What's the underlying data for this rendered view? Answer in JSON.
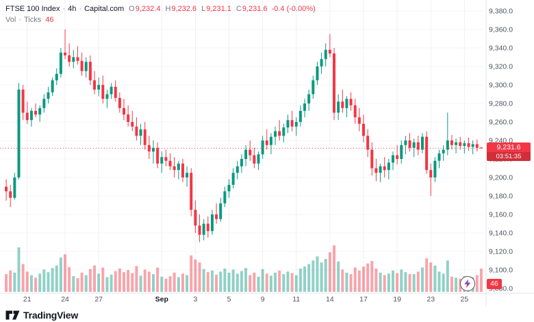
{
  "header": {
    "legend": {
      "title": "FTSE 100 Index",
      "sep": "·",
      "interval": "4h",
      "exchange": "Capital.com",
      "o_label": "O",
      "o": "9,232.4",
      "h_label": "H",
      "h": "9,232.6",
      "l_label": "L",
      "l": "9,231.1",
      "c_label": "C",
      "c": "9,231.6",
      "change": "-0.4 (-0.00%)"
    },
    "volume_legend": {
      "label": "Vol",
      "sep": "·",
      "type": "Ticks",
      "value": "46"
    }
  },
  "price_badge": {
    "price": "9,231.6",
    "countdown": "03:51:35"
  },
  "volume_badge": {
    "value": "46"
  },
  "footer": {
    "logo_text": "TradingView"
  },
  "trade_button": {
    "icon": "lightning-bolt-icon"
  },
  "chart_data": {
    "type": "candlestick",
    "title": "FTSE 100 Index · 4h · Capital.com",
    "last_price": 9231.6,
    "price_axis": {
      "min": 9080,
      "max": 9380,
      "step": 20,
      "labels": [
        "9,380.0",
        "9,360.0",
        "9,340.0",
        "9,320.0",
        "9,300.0",
        "9,280.0",
        "9,260.0",
        "9,240.0",
        "9,220.0",
        "9,200.0",
        "9,180.0",
        "9,160.0",
        "9,140.0",
        "9,120.0",
        "9,100.0",
        "9,080.0"
      ]
    },
    "x_ticks": [
      {
        "label": "21",
        "index": 5,
        "major": false
      },
      {
        "label": "24",
        "index": 14,
        "major": false
      },
      {
        "label": "27",
        "index": 22,
        "major": false
      },
      {
        "label": "Sep",
        "index": 37,
        "major": true
      },
      {
        "label": "3",
        "index": 45,
        "major": false
      },
      {
        "label": "5",
        "index": 53,
        "major": false
      },
      {
        "label": "9",
        "index": 61,
        "major": false
      },
      {
        "label": "11",
        "index": 69,
        "major": false
      },
      {
        "label": "14",
        "index": 77,
        "major": false
      },
      {
        "label": "17",
        "index": 85,
        "major": false
      },
      {
        "label": "19",
        "index": 93,
        "major": false
      },
      {
        "label": "23",
        "index": 101,
        "major": false
      },
      {
        "label": "25",
        "index": 109,
        "major": false
      }
    ],
    "colors": {
      "up": "#089981",
      "down": "#f23645",
      "vol_up": "rgba(8,153,129,0.45)",
      "vol_down": "rgba(242,54,69,0.45)",
      "grid_v": "#eef0f4",
      "grid_h": "#f4f5f8",
      "axis_text": "#50535e",
      "axis_text_major": "#131722",
      "last_price_line": "#f23645",
      "separator": "#e0e3eb"
    },
    "candles": [
      [
        9190,
        9198,
        9175,
        9185,
        35
      ],
      [
        9185,
        9192,
        9168,
        9178,
        42
      ],
      [
        9178,
        9205,
        9176,
        9200,
        38
      ],
      [
        9200,
        9302,
        9198,
        9295,
        88
      ],
      [
        9295,
        9300,
        9262,
        9270,
        55
      ],
      [
        9270,
        9282,
        9258,
        9262,
        40
      ],
      [
        9262,
        9275,
        9255,
        9272,
        33
      ],
      [
        9272,
        9280,
        9265,
        9268,
        28
      ],
      [
        9268,
        9278,
        9260,
        9275,
        36
      ],
      [
        9275,
        9290,
        9270,
        9285,
        44
      ],
      [
        9285,
        9298,
        9280,
        9292,
        39
      ],
      [
        9292,
        9308,
        9288,
        9305,
        47
      ],
      [
        9305,
        9318,
        9300,
        9312,
        52
      ],
      [
        9312,
        9340,
        9308,
        9335,
        68
      ],
      [
        9335,
        9360,
        9328,
        9332,
        74
      ],
      [
        9332,
        9345,
        9320,
        9325,
        49
      ],
      [
        9325,
        9338,
        9318,
        9330,
        31
      ],
      [
        9330,
        9342,
        9322,
        9326,
        27
      ],
      [
        9326,
        9335,
        9310,
        9315,
        38
      ],
      [
        9315,
        9330,
        9308,
        9325,
        33
      ],
      [
        9325,
        9332,
        9300,
        9305,
        45
      ],
      [
        9305,
        9315,
        9290,
        9295,
        52
      ],
      [
        9295,
        9308,
        9288,
        9300,
        36
      ],
      [
        9300,
        9310,
        9280,
        9285,
        48
      ],
      [
        9285,
        9295,
        9275,
        9290,
        29
      ],
      [
        9290,
        9302,
        9285,
        9298,
        34
      ],
      [
        9298,
        9305,
        9282,
        9286,
        41
      ],
      [
        9286,
        9292,
        9270,
        9275,
        46
      ],
      [
        9275,
        9285,
        9262,
        9268,
        39
      ],
      [
        9268,
        9278,
        9255,
        9260,
        43
      ],
      [
        9260,
        9272,
        9250,
        9255,
        37
      ],
      [
        9255,
        9265,
        9240,
        9245,
        51
      ],
      [
        9245,
        9258,
        9235,
        9252,
        32
      ],
      [
        9252,
        9260,
        9230,
        9235,
        44
      ],
      [
        9235,
        9245,
        9220,
        9228,
        40
      ],
      [
        9228,
        9240,
        9215,
        9232,
        35
      ],
      [
        9232,
        9238,
        9210,
        9215,
        48
      ],
      [
        9215,
        9228,
        9205,
        9222,
        30
      ],
      [
        9222,
        9230,
        9212,
        9218,
        26
      ],
      [
        9218,
        9226,
        9208,
        9212,
        31
      ],
      [
        9212,
        9222,
        9200,
        9208,
        38
      ],
      [
        9208,
        9218,
        9198,
        9215,
        29
      ],
      [
        9215,
        9220,
        9195,
        9200,
        36
      ],
      [
        9200,
        9212,
        9190,
        9205,
        33
      ],
      [
        9205,
        9210,
        9158,
        9165,
        72
      ],
      [
        9165,
        9175,
        9140,
        9148,
        64
      ],
      [
        9148,
        9160,
        9130,
        9138,
        58
      ],
      [
        9138,
        9155,
        9132,
        9150,
        45
      ],
      [
        9150,
        9158,
        9135,
        9142,
        39
      ],
      [
        9142,
        9165,
        9138,
        9160,
        42
      ],
      [
        9160,
        9172,
        9150,
        9155,
        34
      ],
      [
        9155,
        9178,
        9152,
        9172,
        40
      ],
      [
        9172,
        9190,
        9168,
        9185,
        46
      ],
      [
        9185,
        9198,
        9178,
        9192,
        38
      ],
      [
        9192,
        9210,
        9188,
        9205,
        44
      ],
      [
        9205,
        9218,
        9198,
        9212,
        36
      ],
      [
        9212,
        9225,
        9205,
        9220,
        41
      ],
      [
        9220,
        9235,
        9212,
        9230,
        47
      ],
      [
        9230,
        9240,
        9218,
        9224,
        33
      ],
      [
        9224,
        9232,
        9210,
        9215,
        38
      ],
      [
        9215,
        9228,
        9208,
        9225,
        30
      ],
      [
        9225,
        9245,
        9220,
        9240,
        45
      ],
      [
        9240,
        9252,
        9230,
        9235,
        36
      ],
      [
        9235,
        9248,
        9225,
        9244,
        32
      ],
      [
        9244,
        9255,
        9235,
        9250,
        38
      ],
      [
        9250,
        9262,
        9240,
        9245,
        42
      ],
      [
        9245,
        9258,
        9238,
        9254,
        35
      ],
      [
        9254,
        9268,
        9248,
        9262,
        40
      ],
      [
        9262,
        9272,
        9250,
        9255,
        37
      ],
      [
        9255,
        9265,
        9245,
        9260,
        33
      ],
      [
        9260,
        9278,
        9255,
        9272,
        46
      ],
      [
        9272,
        9285,
        9265,
        9280,
        50
      ],
      [
        9280,
        9295,
        9272,
        9290,
        55
      ],
      [
        9290,
        9310,
        9285,
        9305,
        62
      ],
      [
        9305,
        9325,
        9300,
        9320,
        70
      ],
      [
        9320,
        9335,
        9312,
        9328,
        58
      ],
      [
        9328,
        9345,
        9320,
        9338,
        65
      ],
      [
        9338,
        9355,
        9330,
        9334,
        78
      ],
      [
        9334,
        9340,
        9262,
        9270,
        92
      ],
      [
        9270,
        9290,
        9262,
        9282,
        60
      ],
      [
        9282,
        9295,
        9270,
        9275,
        44
      ],
      [
        9275,
        9288,
        9265,
        9285,
        38
      ],
      [
        9285,
        9292,
        9272,
        9278,
        35
      ],
      [
        9278,
        9285,
        9258,
        9265,
        48
      ],
      [
        9265,
        9275,
        9250,
        9258,
        42
      ],
      [
        9258,
        9268,
        9238,
        9245,
        50
      ],
      [
        9245,
        9252,
        9222,
        9230,
        56
      ],
      [
        9230,
        9238,
        9202,
        9210,
        61
      ],
      [
        9210,
        9220,
        9196,
        9205,
        46
      ],
      [
        9205,
        9215,
        9195,
        9212,
        38
      ],
      [
        9212,
        9222,
        9200,
        9208,
        33
      ],
      [
        9208,
        9220,
        9198,
        9216,
        36
      ],
      [
        9216,
        9228,
        9208,
        9224,
        42
      ],
      [
        9224,
        9235,
        9214,
        9220,
        37
      ],
      [
        9220,
        9240,
        9215,
        9235,
        44
      ],
      [
        9235,
        9245,
        9225,
        9240,
        39
      ],
      [
        9240,
        9248,
        9228,
        9232,
        35
      ],
      [
        9232,
        9242,
        9222,
        9238,
        35
      ],
      [
        9238,
        9245,
        9224,
        9230,
        40
      ],
      [
        9230,
        9248,
        9226,
        9244,
        48
      ],
      [
        9244,
        9250,
        9204,
        9208,
        66
      ],
      [
        9208,
        9215,
        9180,
        9200,
        58
      ],
      [
        9200,
        9222,
        9195,
        9218,
        52
      ],
      [
        9218,
        9230,
        9210,
        9226,
        40
      ],
      [
        9226,
        9235,
        9218,
        9230,
        36
      ],
      [
        9230,
        9270,
        9224,
        9240,
        62
      ],
      [
        9240,
        9246,
        9230,
        9235,
        30
      ],
      [
        9235,
        9242,
        9226,
        9238,
        28
      ],
      [
        9238,
        9244,
        9230,
        9234,
        26
      ],
      [
        9234,
        9240,
        9226,
        9237,
        31
      ],
      [
        9237,
        9243,
        9229,
        9233,
        27
      ],
      [
        9233,
        9240,
        9225,
        9236,
        29
      ],
      [
        9236,
        9241,
        9228,
        9232,
        33
      ],
      [
        9232.4,
        9232.6,
        9231.1,
        9231.6,
        46
      ]
    ]
  }
}
